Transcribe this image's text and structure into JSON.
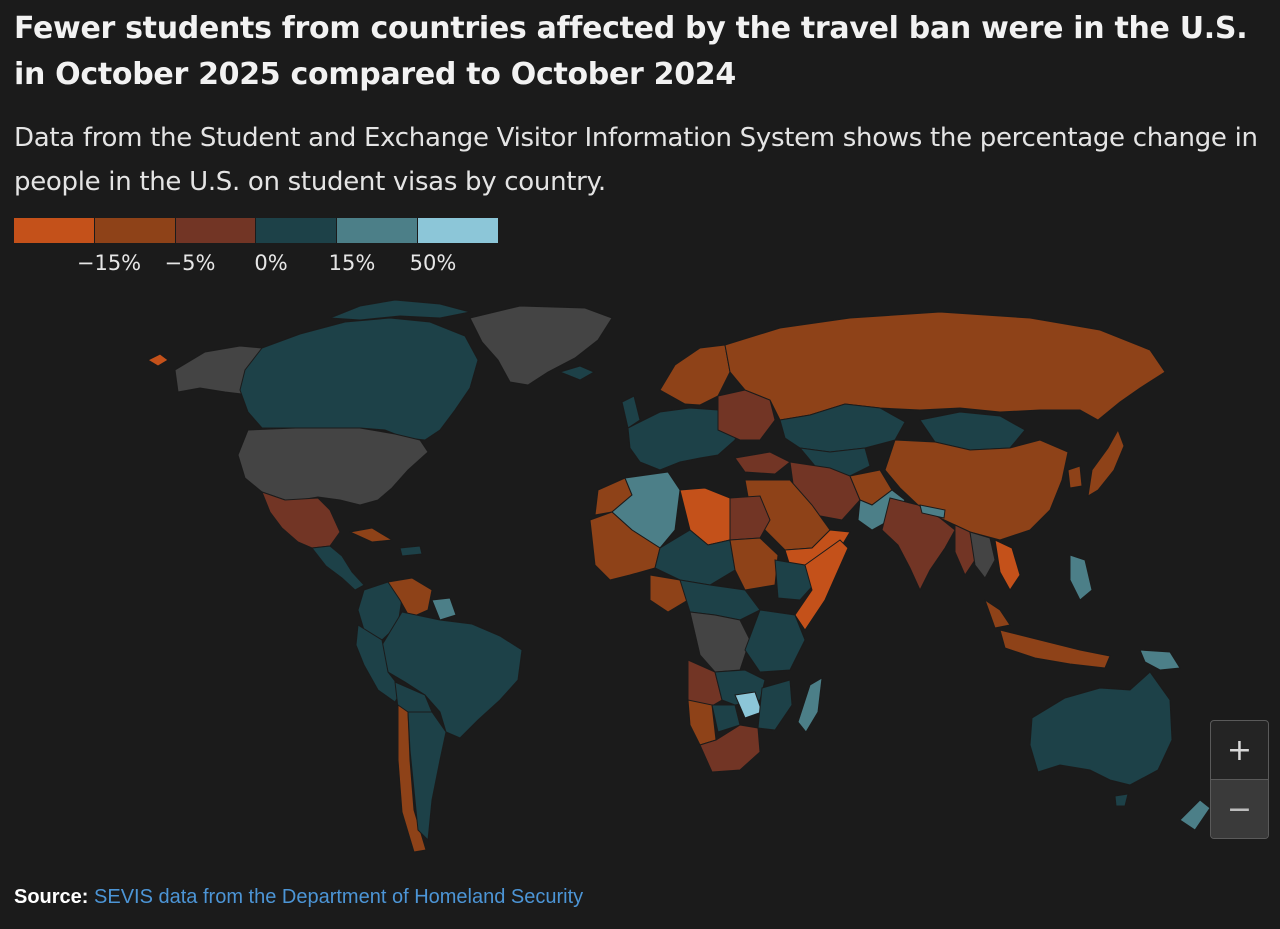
{
  "title": "Fewer students from countries affected by the travel ban were in the U.S. in October 2025 compared to October 2024",
  "subtitle": "Data from the Student and Exchange Visitor Information System shows the percentage change in people in the U.S. on student visas by country.",
  "legend": {
    "bins": [
      {
        "color": "#c4511a"
      },
      {
        "color": "#8e4218"
      },
      {
        "color": "#723525"
      },
      {
        "color": "#1d4148"
      },
      {
        "color": "#4c7f88"
      },
      {
        "color": "#8cc6d8"
      }
    ],
    "ticks": [
      "−15%",
      "−5%",
      "0%",
      "15%",
      "50%"
    ]
  },
  "colors": {
    "background": "#1b1b1b",
    "no_data": "#444444",
    "ocean": "#1b1b1b"
  },
  "zoom": {
    "in_label": "+",
    "out_label": "−"
  },
  "source": {
    "label": "Source:",
    "link_text": "SEVIS data from the Department of Homeland Security"
  }
}
